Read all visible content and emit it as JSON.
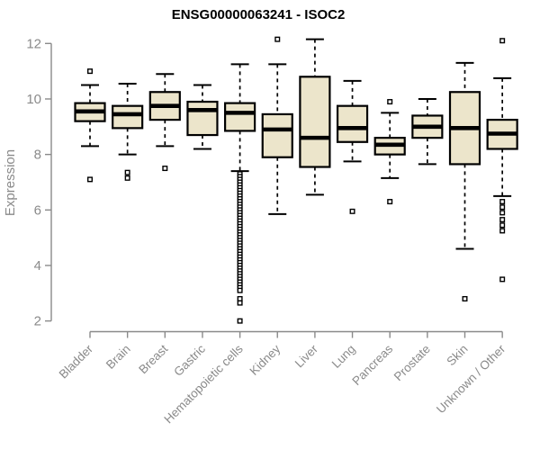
{
  "chart_data": {
    "type": "box",
    "title": "ENSG00000063241 - ISOC2",
    "ylabel": "Expression",
    "xlabel": "",
    "ylim": [
      1.7,
      12.4
    ],
    "yticks": [
      2,
      4,
      6,
      8,
      10,
      12
    ],
    "grid": false,
    "legend": "none",
    "colors": {
      "box_fill": "#ECE5CB",
      "box_stroke": "#000000",
      "median": "#000000",
      "whisker": "#000000",
      "outlier_stroke": "#000000",
      "axis": "#8a8a8a",
      "tick_label": "#8a8a8a",
      "title": "#000000"
    },
    "categories": [
      "Bladder",
      "Brain",
      "Breast",
      "Gastric",
      "Hematopoietic cells",
      "Kidney",
      "Liver",
      "Lung",
      "Pancreas",
      "Prostate",
      "Skin",
      "Unknown / Other"
    ],
    "series": [
      {
        "category": "Bladder",
        "whisker_low": 8.3,
        "q1": 9.2,
        "median": 9.55,
        "q3": 9.85,
        "whisker_high": 10.5,
        "outliers": [
          11.0,
          7.1
        ]
      },
      {
        "category": "Brain",
        "whisker_low": 8.0,
        "q1": 8.95,
        "median": 9.45,
        "q3": 9.75,
        "whisker_high": 10.55,
        "outliers": [
          7.35,
          7.15
        ]
      },
      {
        "category": "Breast",
        "whisker_low": 8.3,
        "q1": 9.25,
        "median": 9.75,
        "q3": 10.25,
        "whisker_high": 10.9,
        "outliers": [
          7.5
        ]
      },
      {
        "category": "Gastric",
        "whisker_low": 8.2,
        "q1": 8.7,
        "median": 9.6,
        "q3": 9.9,
        "whisker_high": 10.5,
        "outliers": []
      },
      {
        "category": "Hematopoietic cells",
        "whisker_low": 7.4,
        "q1": 8.85,
        "median": 9.5,
        "q3": 9.85,
        "whisker_high": 11.25,
        "outliers": [
          7.3,
          7.2,
          7.1,
          7.0,
          6.9,
          6.8,
          6.7,
          6.6,
          6.5,
          6.4,
          6.3,
          6.2,
          6.1,
          6.0,
          5.9,
          5.8,
          5.7,
          5.6,
          5.5,
          5.4,
          5.3,
          5.2,
          5.1,
          5.0,
          4.9,
          4.8,
          4.7,
          4.6,
          4.5,
          4.4,
          4.3,
          4.2,
          4.1,
          4.0,
          3.9,
          3.8,
          3.7,
          3.6,
          3.5,
          3.4,
          3.3,
          3.2,
          3.1,
          2.8,
          2.65,
          2.0
        ]
      },
      {
        "category": "Kidney",
        "whisker_low": 5.85,
        "q1": 7.9,
        "median": 8.9,
        "q3": 9.45,
        "whisker_high": 11.25,
        "outliers": [
          12.15
        ]
      },
      {
        "category": "Liver",
        "whisker_low": 6.55,
        "q1": 7.55,
        "median": 8.6,
        "q3": 10.8,
        "whisker_high": 12.15,
        "outliers": []
      },
      {
        "category": "Lung",
        "whisker_low": 7.75,
        "q1": 8.45,
        "median": 8.95,
        "q3": 9.75,
        "whisker_high": 10.65,
        "outliers": [
          5.95
        ]
      },
      {
        "category": "Pancreas",
        "whisker_low": 7.15,
        "q1": 8.0,
        "median": 8.35,
        "q3": 8.6,
        "whisker_high": 9.5,
        "outliers": [
          9.9,
          6.3
        ]
      },
      {
        "category": "Prostate",
        "whisker_low": 7.65,
        "q1": 8.6,
        "median": 9.0,
        "q3": 9.4,
        "whisker_high": 10.0,
        "outliers": []
      },
      {
        "category": "Skin",
        "whisker_low": 4.6,
        "q1": 7.65,
        "median": 8.95,
        "q3": 10.25,
        "whisker_high": 11.3,
        "outliers": [
          2.8
        ]
      },
      {
        "category": "Unknown / Other",
        "whisker_low": 6.5,
        "q1": 8.2,
        "median": 8.75,
        "q3": 9.25,
        "whisker_high": 10.75,
        "outliers": [
          12.1,
          6.3,
          6.1,
          5.9,
          5.65,
          5.45,
          5.25,
          3.5
        ]
      }
    ]
  }
}
